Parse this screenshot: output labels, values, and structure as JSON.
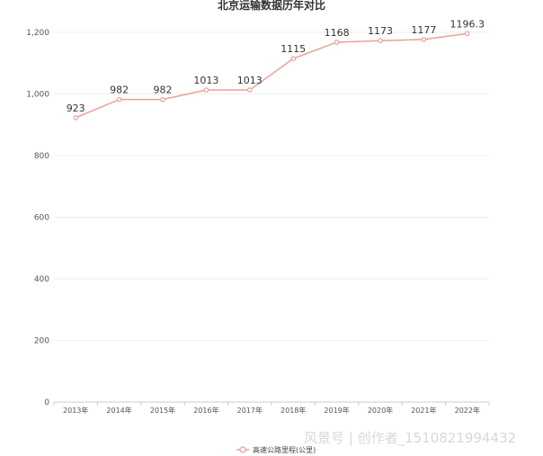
{
  "chart_data": {
    "type": "line",
    "title": "北京运输数据历年对比",
    "categories": [
      "2013年",
      "2014年",
      "2015年",
      "2016年",
      "2017年",
      "2018年",
      "2019年",
      "2020年",
      "2021年",
      "2022年"
    ],
    "series": [
      {
        "name": "高速公路里程(公里)",
        "values": [
          923,
          982,
          982,
          1013,
          1013,
          1115,
          1168,
          1173,
          1177,
          1196.3
        ],
        "labels": [
          "923",
          "982",
          "982",
          "1013",
          "1013",
          "1115",
          "1168",
          "1173",
          "1177",
          "1196.3"
        ],
        "color": "#e8a09a"
      }
    ],
    "ylim": [
      0,
      1200
    ],
    "yticks": [
      "0",
      "200",
      "400",
      "600",
      "800",
      "1,000",
      "1,200"
    ],
    "ytick_values": [
      0,
      200,
      400,
      600,
      800,
      1000,
      1200
    ],
    "grid": true,
    "legend_position": "bottom-center"
  },
  "watermark": "风景号 | 创作者_1510821994432",
  "colors": {
    "line": "#e8a09a",
    "grid": "#eeeeee",
    "axis": "#cccccc"
  }
}
